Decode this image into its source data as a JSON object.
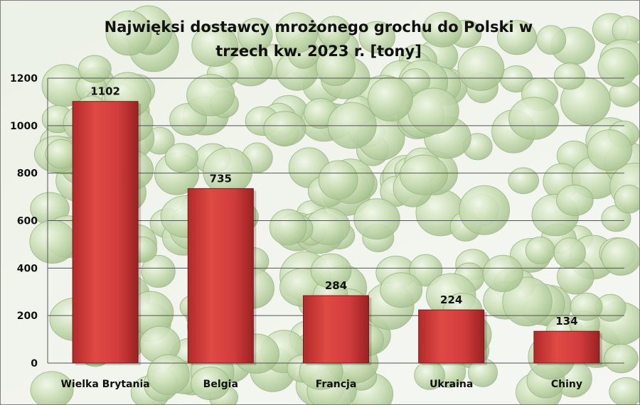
{
  "chart_data": {
    "type": "bar",
    "title_lines": [
      "Najwięksi dostawcy mrożonego grochu do Polski w",
      "trzech kw. 2023 r. [tony]"
    ],
    "categories": [
      "Wielka Brytania",
      "Belgia",
      "Francja",
      "Ukraina",
      "Chiny"
    ],
    "values": [
      1102,
      735,
      284,
      224,
      134
    ],
    "ylim": [
      0,
      1200
    ],
    "yticks": [
      0,
      200,
      400,
      600,
      800,
      1000,
      1200
    ],
    "xlabel": "",
    "ylabel": "",
    "grid": true,
    "legend": "none",
    "data_labels": true,
    "bar_color": "#d13c3c",
    "background": "photo of frozen green peas"
  },
  "colors": {
    "bar": "#d13c3c",
    "bar_dark": "#8e1d1d",
    "bar_light": "#ee7a72",
    "grid": "#5a5a5a",
    "text": "#000000",
    "pea_base": "#a9c98a",
    "pea_light": "#dfeecf"
  }
}
